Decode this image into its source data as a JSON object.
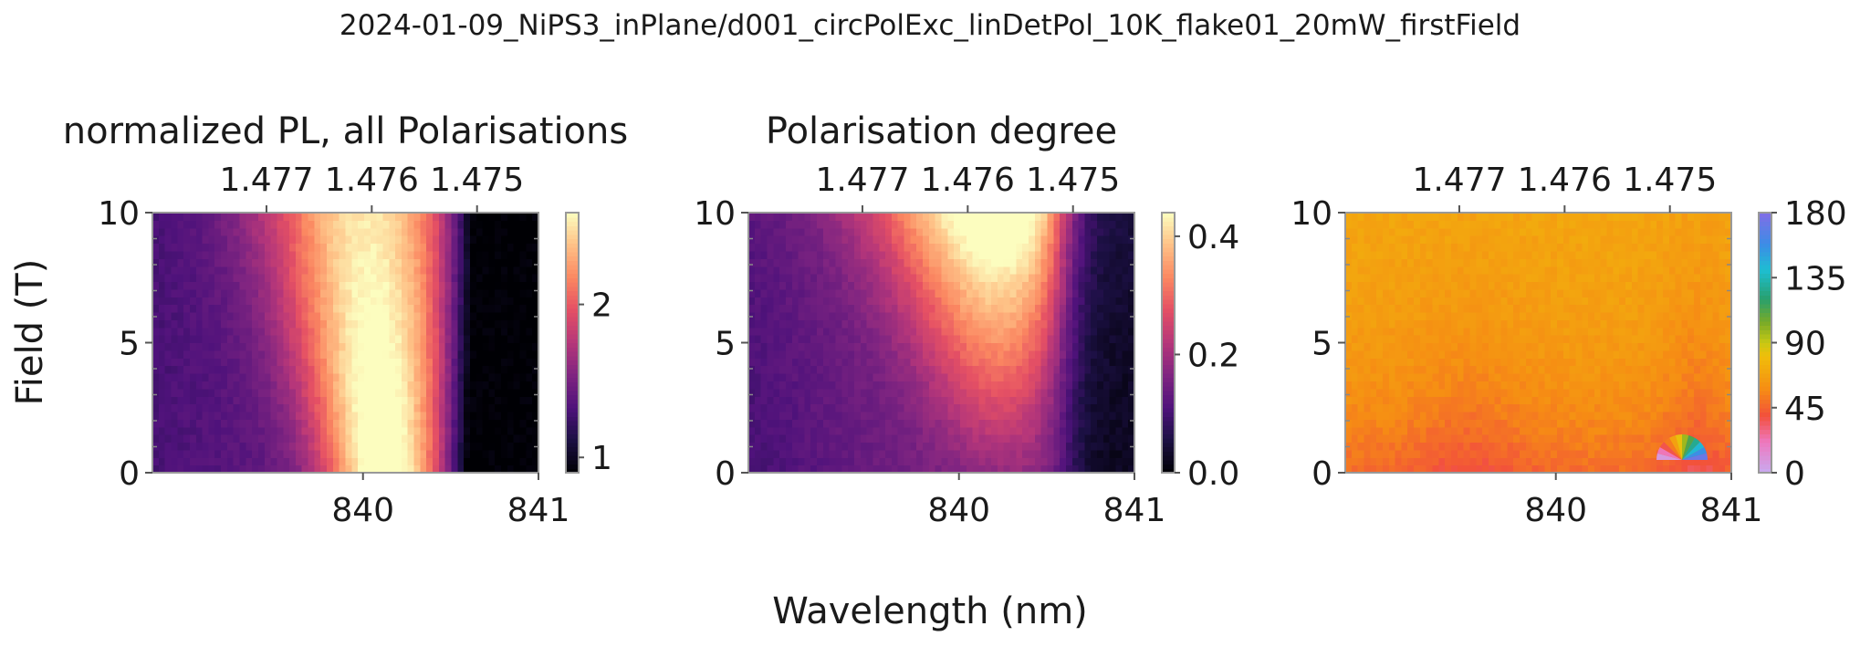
{
  "figure": {
    "suptitle": "2024-01-09_NiPS3_inPlane/d001_circPolExc_linDetPol_10K_flake01_20mW_firstField",
    "xlabel": "Wavelength (nm)",
    "ylabel": "Field (T)"
  },
  "chart_data": [
    {
      "type": "heatmap",
      "title": "normalized PL, all Polarisations",
      "x_range_nm": [
        838.8,
        841.0
      ],
      "y_range_T": [
        0,
        10
      ],
      "x_ticks": [
        "840",
        "841"
      ],
      "x_tick_values": [
        840,
        841
      ],
      "top_ticks_eV": [
        "1.477",
        "1.476",
        "1.475"
      ],
      "top_tick_values_nm": [
        839.45,
        840.05,
        840.65
      ],
      "y_ticks": [
        "0",
        "5",
        "10"
      ],
      "y_tick_values": [
        0,
        5,
        10
      ],
      "colormap": "magma",
      "colorbar_range": [
        0.9,
        2.6
      ],
      "colorbar_ticks": [
        "1",
        "2"
      ],
      "colorbar_tick_values": [
        1,
        2
      ],
      "model": {
        "kind": "pl",
        "peak_nm_at_0T": 840.12,
        "peak_nm_at_10T": 840.0,
        "max": 2.6,
        "min": 0.9
      }
    },
    {
      "type": "heatmap",
      "title": "Polarisation degree",
      "x_range_nm": [
        838.8,
        841.0
      ],
      "y_range_T": [
        0,
        10
      ],
      "x_ticks": [
        "840",
        "841"
      ],
      "x_tick_values": [
        840,
        841
      ],
      "top_ticks_eV": [
        "1.477",
        "1.476",
        "1.475"
      ],
      "top_tick_values_nm": [
        839.45,
        840.05,
        840.65
      ],
      "y_ticks": [
        "0",
        "5",
        "10"
      ],
      "y_tick_values": [
        0,
        5,
        10
      ],
      "colormap": "magma",
      "colorbar_range": [
        0.0,
        0.44
      ],
      "colorbar_ticks": [
        "0.0",
        "0.2",
        "0.4"
      ],
      "colorbar_tick_values": [
        0.0,
        0.2,
        0.4
      ],
      "model": {
        "kind": "pol",
        "peak_nm": 840.2,
        "max": 0.43,
        "min": 0.0
      }
    },
    {
      "type": "heatmap",
      "title": "",
      "x_range_nm": [
        838.8,
        841.0
      ],
      "y_range_T": [
        0,
        10
      ],
      "x_ticks": [
        "840",
        "841"
      ],
      "x_tick_values": [
        840,
        841
      ],
      "top_ticks_eV": [
        "1.477",
        "1.476",
        "1.475"
      ],
      "top_tick_values_nm": [
        839.45,
        840.05,
        840.65
      ],
      "y_ticks": [
        "0",
        "5",
        "10"
      ],
      "y_tick_values": [
        0,
        5,
        10
      ],
      "colormap": "hsv-angle",
      "colorbar_range": [
        0,
        180
      ],
      "colorbar_ticks": [
        "0",
        "45",
        "90",
        "135",
        "180"
      ],
      "colorbar_tick_values": [
        0,
        45,
        90,
        135,
        180
      ],
      "model": {
        "kind": "angle",
        "value_at_10T": 72,
        "value_at_0T": 48
      },
      "inset": "color-wheel-icon"
    }
  ]
}
